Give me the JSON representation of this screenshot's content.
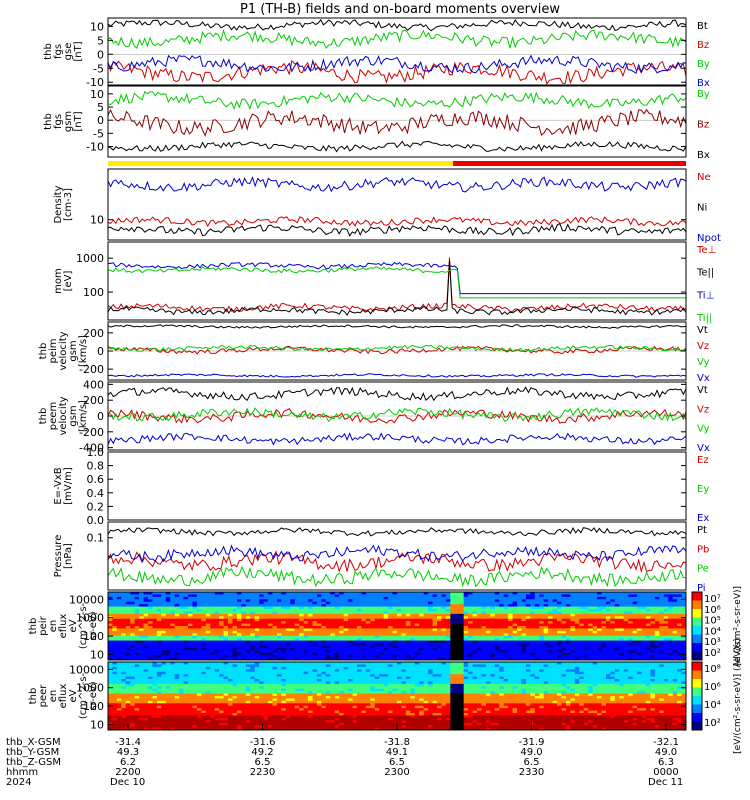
{
  "title": "P1 (TH-B) fields and on-board moments overview",
  "chart_data": [
    {
      "type": "line",
      "ylabel": [
        "thb",
        "fgs",
        "gse",
        "[nT]"
      ],
      "yticks": [
        10,
        5,
        0,
        -5,
        -10
      ],
      "ylim": [
        -11,
        13
      ],
      "series": [
        {
          "name": "Bt",
          "color": "#000000",
          "level": 10.5,
          "amp": 1.2
        },
        {
          "name": "Bz",
          "color": "#cc0000",
          "level": -6.5,
          "amp": 2.5
        },
        {
          "name": "By",
          "color": "#00cc00",
          "level": 5.5,
          "amp": 2.0
        },
        {
          "name": "Bx",
          "color": "#0000cc",
          "level": -3.5,
          "amp": 2.0
        }
      ]
    },
    {
      "type": "line",
      "ylabel": [
        "thb",
        "fgs",
        "gsm",
        "[nT]"
      ],
      "yticks": [
        10,
        5,
        0,
        -5,
        -10
      ],
      "ylim": [
        -14,
        13
      ],
      "series": [
        {
          "name": "By",
          "color": "#00cc00",
          "level": 7.5,
          "amp": 2.0
        },
        {
          "name": "Bz",
          "color": "#880000",
          "level": -1.0,
          "amp": 3.0
        },
        {
          "name": "Bx",
          "color": "#000000",
          "level": -10.0,
          "amp": 1.2
        }
      ]
    },
    {
      "type": "line",
      "ylabel": [
        "Density",
        "[cm-3]"
      ],
      "yscale": "log",
      "yticks": [
        10
      ],
      "ylim": [
        3,
        200
      ],
      "series": [
        {
          "name": "Ne",
          "color": "#cc0000",
          "level": 9,
          "amp": 0.08
        },
        {
          "name": "Ni",
          "color": "#000000",
          "level": 5.5,
          "amp": 0.1
        },
        {
          "name": "Npot",
          "color": "#0000cc",
          "level": 80,
          "amp": 0.12
        }
      ]
    },
    {
      "type": "line",
      "ylabel": [
        "mom",
        "[eV]"
      ],
      "yscale": "log",
      "yticks": [
        1000,
        100
      ],
      "ylim": [
        15,
        3000
      ],
      "series": [
        {
          "name": "Te⊥",
          "color": "#cc0000",
          "level": 35,
          "amp": 0.08
        },
        {
          "name": "Te||",
          "color": "#000000",
          "level": 28,
          "amp": 0.08
        },
        {
          "name": "Ti⊥",
          "color": "#0000cc",
          "level": 600,
          "amp": 0.06
        },
        {
          "name": "Ti||",
          "color": "#00cc00",
          "level": 450,
          "amp": 0.06
        }
      ]
    },
    {
      "type": "line",
      "ylabel": [
        "thb",
        "peim",
        "velocity",
        "gsm",
        "[km/s]"
      ],
      "yticks": [
        200,
        0,
        -200
      ],
      "ylim": [
        -320,
        320
      ],
      "series": [
        {
          "name": "Vt",
          "color": "#000000",
          "level": 270,
          "amp": 12
        },
        {
          "name": "Vz",
          "color": "#cc0000",
          "level": 10,
          "amp": 25
        },
        {
          "name": "Vy",
          "color": "#00cc00",
          "level": 30,
          "amp": 20
        },
        {
          "name": "Vx",
          "color": "#0000cc",
          "level": -270,
          "amp": 12
        }
      ]
    },
    {
      "type": "line",
      "ylabel": [
        "thb",
        "peem",
        "velocity",
        "gsm",
        "[km/s]"
      ],
      "yticks": [
        400,
        200,
        0,
        -200,
        -400
      ],
      "ylim": [
        -430,
        430
      ],
      "series": [
        {
          "name": "Vt",
          "color": "#000000",
          "level": 280,
          "amp": 50
        },
        {
          "name": "Vz",
          "color": "#cc0000",
          "level": 0,
          "amp": 55
        },
        {
          "name": "Vy",
          "color": "#00cc00",
          "level": 20,
          "amp": 55
        },
        {
          "name": "Vx",
          "color": "#0000cc",
          "level": -290,
          "amp": 45
        }
      ]
    },
    {
      "type": "line",
      "ylabel": [
        "E=-VxB",
        "[mV/m]"
      ],
      "yticks": [
        1.0,
        0.8,
        0.6,
        0.4,
        0.2,
        0.0
      ],
      "ylim": [
        0,
        1
      ],
      "series": [
        {
          "name": "Ez",
          "color": "#cc0000",
          "values": []
        },
        {
          "name": "Ey",
          "color": "#00cc00",
          "values": []
        },
        {
          "name": "Ex",
          "color": "#0000cc",
          "values": []
        }
      ]
    },
    {
      "type": "line",
      "ylabel": [
        "Pressure",
        "[nPa]"
      ],
      "yscale": "log",
      "yticks": [
        0.1
      ],
      "ylim": [
        0.01,
        0.2
      ],
      "series": [
        {
          "name": "Pt",
          "color": "#000000",
          "level": 0.13,
          "amp": 0.05
        },
        {
          "name": "Pb",
          "color": "#cc0000",
          "level": 0.035,
          "amp": 0.12
        },
        {
          "name": "Pe",
          "color": "#00cc00",
          "level": 0.018,
          "amp": 0.12
        },
        {
          "name": "Pi",
          "color": "#0000cc",
          "level": 0.05,
          "amp": 0.1
        }
      ]
    },
    {
      "type": "heatmap",
      "ylabel": [
        "thb",
        "peir",
        "en",
        "eflux",
        "eV",
        "(cm^2-s-",
        "sr-eV)"
      ],
      "yscale": "log",
      "yticks": [
        "10000",
        "1000",
        "100",
        "10"
      ],
      "ylim": [
        5,
        25000
      ],
      "colorbar": {
        "labels": [
          "10⁷",
          "10⁶",
          "10⁵",
          "10⁴",
          "10³",
          "10²"
        ],
        "label": "[eV/(cm²-s-sr-eV)]"
      }
    },
    {
      "type": "heatmap",
      "ylabel": [
        "thb",
        "peer",
        "en",
        "eflux",
        "eV",
        "(cm^2-s-",
        "sr-eV)"
      ],
      "yscale": "log",
      "yticks": [
        "10000",
        "1000",
        "100",
        "10"
      ],
      "ylim": [
        5,
        25000
      ],
      "colorbar": {
        "labels": [
          "10⁸",
          "10⁶",
          "10⁴",
          "10²"
        ],
        "label": "[eV/(cm²-s-sr-eV)] (All Qs)"
      }
    }
  ],
  "axis_rows": {
    "labels": [
      "thb_X-GSM",
      "thb_Y-GSM",
      "thb_Z-GSM",
      "hhmm",
      "2024"
    ],
    "columns": [
      {
        "values": [
          "-31.4",
          "49.3",
          "6.2",
          "2200",
          "Dec 10"
        ]
      },
      {
        "values": [
          "-31.6",
          "49.2",
          "6.5",
          "2230",
          ""
        ]
      },
      {
        "values": [
          "-31.8",
          "49.1",
          "6.5",
          "2300",
          ""
        ]
      },
      {
        "values": [
          "-31.9",
          "49.0",
          "6.5",
          "2330",
          ""
        ]
      },
      {
        "values": [
          "-32.1",
          "49.0",
          "6.3",
          "0000",
          "Dec 11"
        ]
      }
    ]
  },
  "mode_bar": {
    "colors": [
      "#ffee00",
      "#ee0000"
    ]
  },
  "colors": {
    "black": "#000000",
    "red": "#cc0000",
    "green": "#00cc00",
    "blue": "#0000cc"
  }
}
